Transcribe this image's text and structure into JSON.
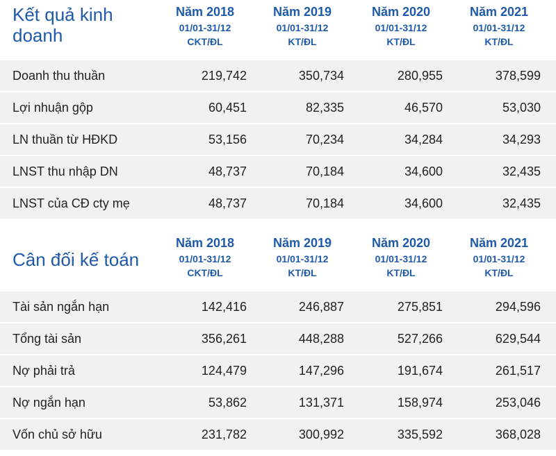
{
  "kqkd": {
    "title_line1": "Kết quả kinh",
    "title_line2": "doanh",
    "columns": [
      {
        "year": "Năm 2018",
        "period": "01/01-31/12",
        "audit": "CKT/ĐL"
      },
      {
        "year": "Năm 2019",
        "period": "01/01-31/12",
        "audit": "KT/ĐL"
      },
      {
        "year": "Năm 2020",
        "period": "01/01-31/12",
        "audit": "KT/ĐL"
      },
      {
        "year": "Năm 2021",
        "period": "01/01-31/12",
        "audit": "KT/ĐL"
      }
    ],
    "rows": [
      {
        "label": "Doanh thu thuần",
        "values": [
          "219,742",
          "350,734",
          "280,955",
          "378,599"
        ]
      },
      {
        "label": "Lợi nhuận gộp",
        "values": [
          "60,451",
          "82,335",
          "46,570",
          "53,030"
        ]
      },
      {
        "label": "LN thuần từ HĐKD",
        "values": [
          "53,156",
          "70,234",
          "34,284",
          "34,293"
        ]
      },
      {
        "label": "LNST thu nhập DN",
        "values": [
          "48,737",
          "70,184",
          "34,600",
          "32,435"
        ]
      },
      {
        "label": "LNST của CĐ cty mẹ",
        "values": [
          "48,737",
          "70,184",
          "34,600",
          "32,435"
        ]
      }
    ]
  },
  "cdkt": {
    "title": "Cân đối kế toán",
    "columns": [
      {
        "year": "Năm 2018",
        "period": "01/01-31/12",
        "audit": "CKT/ĐL"
      },
      {
        "year": "Năm 2019",
        "period": "01/01-31/12",
        "audit": "KT/ĐL"
      },
      {
        "year": "Năm 2020",
        "period": "01/01-31/12",
        "audit": "KT/ĐL"
      },
      {
        "year": "Năm 2021",
        "period": "01/01-31/12",
        "audit": "KT/ĐL"
      }
    ],
    "rows": [
      {
        "label": "Tài sản ngắn hạn",
        "values": [
          "142,416",
          "246,887",
          "275,851",
          "294,596"
        ]
      },
      {
        "label": "Tổng tài sản",
        "values": [
          "356,261",
          "448,288",
          "527,266",
          "629,544"
        ]
      },
      {
        "label": "Nợ phải trả",
        "values": [
          "124,479",
          "147,296",
          "191,674",
          "261,517"
        ]
      },
      {
        "label": "Nợ ngắn hạn",
        "values": [
          "53,862",
          "131,371",
          "158,974",
          "253,046"
        ]
      },
      {
        "label": "Vốn chủ sở hữu",
        "values": [
          "231,782",
          "300,992",
          "335,592",
          "368,028"
        ]
      }
    ]
  },
  "colors": {
    "header_text": "#1f5aa8",
    "row_bg": "#f1f1f1"
  }
}
